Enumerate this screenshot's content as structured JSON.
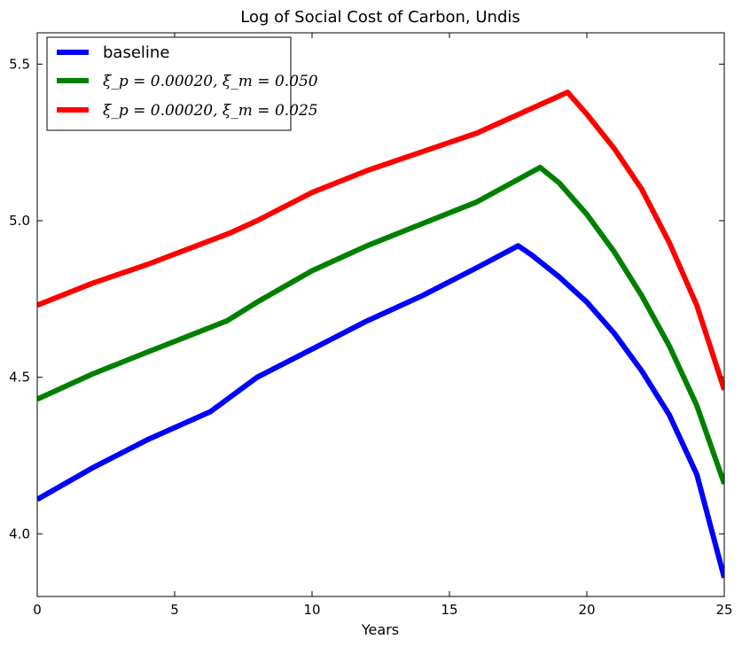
{
  "chart_data": {
    "type": "line",
    "title": "Log of Social Cost of Carbon, Undis",
    "xlabel": "Years",
    "ylabel": "",
    "xlim": [
      0,
      25
    ],
    "ylim": [
      3.8,
      5.6
    ],
    "xticks": [
      0,
      5,
      10,
      15,
      20,
      25
    ],
    "xtick_labels": [
      "0",
      "5",
      "10",
      "15",
      "20",
      "25"
    ],
    "yticks": [
      4.0,
      4.5,
      5.0,
      5.5
    ],
    "ytick_labels": [
      "4.0",
      "4.5",
      "5.0",
      "5.5"
    ],
    "grid": false,
    "legend_position": "top-left",
    "series": [
      {
        "name": "baseline",
        "color": "#0000ff",
        "x": [
          0,
          2,
          4,
          6.3,
          8,
          10,
          12,
          14,
          16,
          17.5,
          18,
          19,
          20,
          21,
          22,
          23,
          24,
          25
        ],
        "y": [
          4.11,
          4.21,
          4.3,
          4.39,
          4.5,
          4.59,
          4.68,
          4.76,
          4.85,
          4.92,
          4.89,
          4.82,
          4.74,
          4.64,
          4.52,
          4.38,
          4.19,
          3.86
        ]
      },
      {
        "name": "ξ_p = 0.00020, ξ_m = 0.050",
        "color": "#008000",
        "x": [
          0,
          2,
          4,
          6.9,
          8,
          10,
          12,
          14,
          16,
          18.3,
          19,
          20,
          21,
          22,
          23,
          24,
          25
        ],
        "y": [
          4.43,
          4.51,
          4.58,
          4.68,
          4.74,
          4.84,
          4.92,
          4.99,
          5.06,
          5.17,
          5.12,
          5.02,
          4.9,
          4.76,
          4.6,
          4.41,
          4.16
        ]
      },
      {
        "name": "ξ_p = 0.00020, ξ_m = 0.025",
        "color": "#ff0000",
        "x": [
          0,
          2,
          4,
          7,
          8,
          10,
          12,
          14,
          16,
          19.3,
          20,
          21,
          22,
          23,
          24,
          25
        ],
        "y": [
          4.73,
          4.8,
          4.86,
          4.96,
          5.0,
          5.09,
          5.16,
          5.22,
          5.28,
          5.41,
          5.34,
          5.23,
          5.1,
          4.93,
          4.73,
          4.46
        ]
      }
    ]
  }
}
